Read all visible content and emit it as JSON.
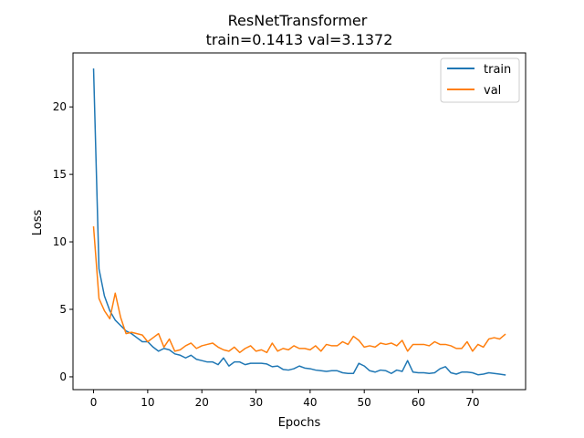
{
  "chart_data": {
    "type": "line",
    "title": "ResNetTransformer",
    "subtitle": "train=0.1413 val=3.1372",
    "xlabel": "Epochs",
    "ylabel": "Loss",
    "xlim": [
      -3.8,
      79.8
    ],
    "ylim": [
      -0.95,
      24.0
    ],
    "xticks": [
      0,
      10,
      20,
      30,
      40,
      50,
      60,
      70
    ],
    "yticks": [
      0,
      5,
      10,
      15,
      20
    ],
    "grid": false,
    "legend": "top-right",
    "series": [
      {
        "name": "train",
        "color": "#1f77b4",
        "values": [
          22.8,
          8.0,
          6.0,
          4.9,
          4.2,
          3.8,
          3.4,
          3.2,
          2.9,
          2.6,
          2.6,
          2.2,
          1.9,
          2.1,
          2.0,
          1.7,
          1.6,
          1.4,
          1.6,
          1.3,
          1.2,
          1.1,
          1.1,
          0.9,
          1.4,
          0.8,
          1.1,
          1.1,
          0.9,
          1.0,
          1.0,
          1.0,
          0.95,
          0.75,
          0.8,
          0.55,
          0.5,
          0.6,
          0.8,
          0.65,
          0.6,
          0.5,
          0.45,
          0.4,
          0.45,
          0.45,
          0.3,
          0.25,
          0.25,
          1.0,
          0.8,
          0.45,
          0.35,
          0.5,
          0.45,
          0.25,
          0.5,
          0.4,
          1.2,
          0.35,
          0.3,
          0.3,
          0.25,
          0.3,
          0.6,
          0.75,
          0.3,
          0.2,
          0.35,
          0.35,
          0.3,
          0.15,
          0.2,
          0.3,
          0.25,
          0.2,
          0.14
        ]
      },
      {
        "name": "val",
        "color": "#ff7f0e",
        "values": [
          11.1,
          5.8,
          4.9,
          4.3,
          6.2,
          4.4,
          3.2,
          3.3,
          3.2,
          3.1,
          2.6,
          2.9,
          3.2,
          2.2,
          2.8,
          1.9,
          2.0,
          2.3,
          2.5,
          2.1,
          2.3,
          2.4,
          2.5,
          2.2,
          2.0,
          1.9,
          2.2,
          1.8,
          2.1,
          2.3,
          1.9,
          2.0,
          1.8,
          2.5,
          1.9,
          2.1,
          2.0,
          2.3,
          2.1,
          2.1,
          2.0,
          2.3,
          1.9,
          2.4,
          2.3,
          2.3,
          2.6,
          2.4,
          3.0,
          2.7,
          2.2,
          2.3,
          2.2,
          2.5,
          2.4,
          2.5,
          2.3,
          2.7,
          1.9,
          2.4,
          2.4,
          2.4,
          2.3,
          2.6,
          2.4,
          2.4,
          2.3,
          2.1,
          2.1,
          2.6,
          1.9,
          2.4,
          2.2,
          2.8,
          2.9,
          2.8,
          3.1372
        ]
      }
    ]
  }
}
